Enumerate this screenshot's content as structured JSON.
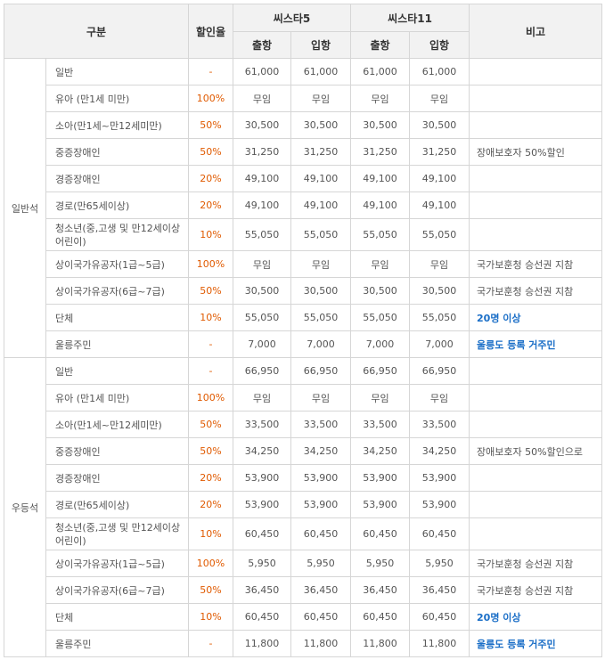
{
  "header": {
    "category": "구분",
    "discount": "할인율",
    "sister5": "씨스타5",
    "sister11": "씨스타11",
    "note": "비고",
    "depart": "출항",
    "arrive": "입항"
  },
  "sections": [
    {
      "label": "일반석",
      "rows": [
        {
          "name": "일반",
          "rate": "-",
          "v": [
            "61,000",
            "61,000",
            "61,000",
            "61,000"
          ],
          "note": "",
          "hl": false
        },
        {
          "name": "유아 (만1세 미만)",
          "rate": "100%",
          "v": [
            "무임",
            "무임",
            "무임",
            "무임"
          ],
          "note": "",
          "hl": false
        },
        {
          "name": "소아(만1세~만12세미만)",
          "rate": "50%",
          "v": [
            "30,500",
            "30,500",
            "30,500",
            "30,500"
          ],
          "note": "",
          "hl": false
        },
        {
          "name": "중증장애인",
          "rate": "50%",
          "v": [
            "31,250",
            "31,250",
            "31,250",
            "31,250"
          ],
          "note": "장애보호자 50%할인",
          "hl": false
        },
        {
          "name": "경증장애인",
          "rate": "20%",
          "v": [
            "49,100",
            "49,100",
            "49,100",
            "49,100"
          ],
          "note": "",
          "hl": false
        },
        {
          "name": "경로(만65세이상)",
          "rate": "20%",
          "v": [
            "49,100",
            "49,100",
            "49,100",
            "49,100"
          ],
          "note": "",
          "hl": false
        },
        {
          "name": "청소년(중,고생 및 만12세이상 어린이)",
          "rate": "10%",
          "v": [
            "55,050",
            "55,050",
            "55,050",
            "55,050"
          ],
          "note": "",
          "hl": false,
          "wrap": true
        },
        {
          "name": "상이국가유공자(1급~5급)",
          "rate": "100%",
          "v": [
            "무임",
            "무임",
            "무임",
            "무임"
          ],
          "note": "국가보훈청 승선권 지참",
          "hl": false
        },
        {
          "name": "상이국가유공자(6급~7급)",
          "rate": "50%",
          "v": [
            "30,500",
            "30,500",
            "30,500",
            "30,500"
          ],
          "note": "국가보훈청 승선권 지참",
          "hl": false
        },
        {
          "name": "단체",
          "rate": "10%",
          "v": [
            "55,050",
            "55,050",
            "55,050",
            "55,050"
          ],
          "note": "20명 이상",
          "hl": true
        },
        {
          "name": "울릉주민",
          "rate": "-",
          "v": [
            "7,000",
            "7,000",
            "7,000",
            "7,000"
          ],
          "note": "울릉도 등록 거주민",
          "hl": true
        }
      ]
    },
    {
      "label": "우등석",
      "rows": [
        {
          "name": "일반",
          "rate": "-",
          "v": [
            "66,950",
            "66,950",
            "66,950",
            "66,950"
          ],
          "note": "",
          "hl": false
        },
        {
          "name": "유아 (만1세 미만)",
          "rate": "100%",
          "v": [
            "무임",
            "무임",
            "무임",
            "무임"
          ],
          "note": "",
          "hl": false
        },
        {
          "name": "소아(만1세~만12세미만)",
          "rate": "50%",
          "v": [
            "33,500",
            "33,500",
            "33,500",
            "33,500"
          ],
          "note": "",
          "hl": false
        },
        {
          "name": "중증장애인",
          "rate": "50%",
          "v": [
            "34,250",
            "34,250",
            "34,250",
            "34,250"
          ],
          "note": "장애보호자 50%할인으로",
          "hl": false
        },
        {
          "name": "경증장애인",
          "rate": "20%",
          "v": [
            "53,900",
            "53,900",
            "53,900",
            "53,900"
          ],
          "note": "",
          "hl": false
        },
        {
          "name": "경로(만65세이상)",
          "rate": "20%",
          "v": [
            "53,900",
            "53,900",
            "53,900",
            "53,900"
          ],
          "note": "",
          "hl": false
        },
        {
          "name": "청소년(중,고생 및 만12세이상 어린이)",
          "rate": "10%",
          "v": [
            "60,450",
            "60,450",
            "60,450",
            "60,450"
          ],
          "note": "",
          "hl": false,
          "wrap": true
        },
        {
          "name": "상이국가유공자(1급~5급)",
          "rate": "100%",
          "v": [
            "5,950",
            "5,950",
            "5,950",
            "5,950"
          ],
          "note": "국가보훈청 승선권 지참",
          "hl": false
        },
        {
          "name": "상이국가유공자(6급~7급)",
          "rate": "50%",
          "v": [
            "36,450",
            "36,450",
            "36,450",
            "36,450"
          ],
          "note": "국가보훈청 승선권 지참",
          "hl": false
        },
        {
          "name": "단체",
          "rate": "10%",
          "v": [
            "60,450",
            "60,450",
            "60,450",
            "60,450"
          ],
          "note": "20명 이상",
          "hl": true
        },
        {
          "name": "울릉주민",
          "rate": "-",
          "v": [
            "11,800",
            "11,800",
            "11,800",
            "11,800"
          ],
          "note": "울릉도 등록 거주민",
          "hl": true
        }
      ]
    }
  ]
}
